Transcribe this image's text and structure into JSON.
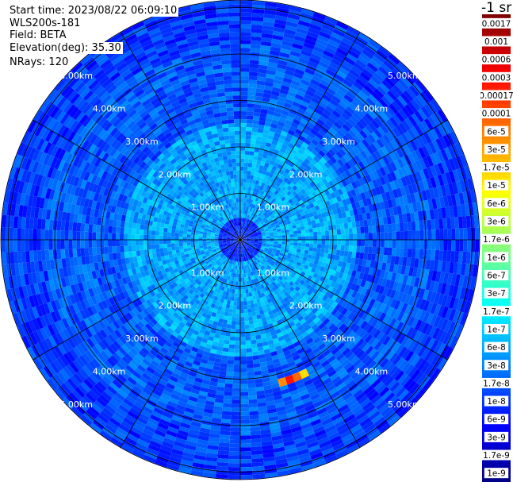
{
  "header": {
    "start_time": "Start time: 2023/08/22 06:09:10",
    "instrument": "WLS200s-181",
    "field": "Field: BETA",
    "elevation": "Elevation(deg): 35.30",
    "nrays": "NRays: 120"
  },
  "colorbar": {
    "unit_label": "-1 sr",
    "ticks": [
      "0.0017",
      "0.001",
      "0.0006",
      "0.0003",
      "0.00017",
      "0.0001",
      "6e-5",
      "3e-5",
      "1.7e-5",
      "1e-5",
      "6e-6",
      "3e-6",
      "1.7e-6",
      "1e-6",
      "6e-7",
      "3e-7",
      "1.7e-7",
      "1e-7",
      "6e-8",
      "3e-8",
      "1.7e-8",
      "1e-8",
      "6e-9",
      "3e-9",
      "1.7e-9",
      "1e-9"
    ]
  },
  "chart_data": {
    "type": "heatmap",
    "title": "",
    "projection": "polar (PPI scan)",
    "field": "BETA",
    "elevation_deg": 35.3,
    "n_rays": 120,
    "range_rings_km": [
      1.0,
      2.0,
      3.0,
      4.0,
      5.0
    ],
    "ring_labels": [
      "1.00km",
      "2.00km",
      "3.00km",
      "4.00km",
      "5.00km"
    ],
    "max_range_km": 5.5,
    "scale": "log",
    "value_range": [
      1e-09,
      0.0017
    ],
    "dominant_values": {
      "range_0_to_0.5km": 1e-08,
      "range_0.5_to_2.5km": 6e-08,
      "range_2.5_to_4.2km": 2e-08,
      "range_4.2_to_5.5km": 1.3e-08
    },
    "hotspot": {
      "azimuth_deg": 160,
      "range_km": 3.2,
      "value": 0.0003
    }
  }
}
